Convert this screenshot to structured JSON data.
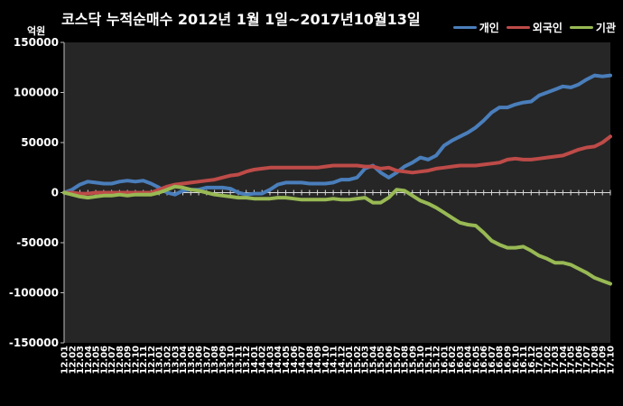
{
  "chart_data": {
    "type": "line",
    "title": "코스닥 누적순매수 2012년 1월 1일~2017년10월13일",
    "unit_label": "억원",
    "ylim": [
      -150000,
      150000
    ],
    "yticks": [
      150000,
      100000,
      50000,
      0,
      -50000,
      -100000,
      -150000
    ],
    "ytick_labels": [
      "150000",
      "100000",
      "50000",
      "0",
      "-50000",
      "-100000",
      "-150000"
    ],
    "legend_position": "top-right",
    "x": [
      "12.01",
      "12.02",
      "12.03",
      "12.04",
      "12.05",
      "12.06",
      "12.07",
      "12.08",
      "12.09",
      "12.10",
      "12.11",
      "12.12",
      "13.01",
      "13.02",
      "13.03",
      "13.04",
      "13.05",
      "13.06",
      "13.07",
      "13.08",
      "13.09",
      "13.10",
      "13.11",
      "13.12",
      "14.01",
      "14.02",
      "14.03",
      "14.04",
      "14.05",
      "14.06",
      "14.07",
      "14.08",
      "14.09",
      "14.10",
      "14.11",
      "14.12",
      "15.01",
      "15.02",
      "15.03",
      "15.04",
      "15.05",
      "15.06",
      "15.07",
      "15.08",
      "15.09",
      "15.10",
      "15.11",
      "15.12",
      "16.01",
      "16.02",
      "16.03",
      "16.04",
      "16.05",
      "16.06",
      "16.07",
      "16.08",
      "16.09",
      "16.10",
      "16.11",
      "16.12",
      "17.01",
      "17.02",
      "17.03",
      "17.04",
      "17.05",
      "17.06",
      "17.07",
      "17.08",
      "17.09",
      "17.10"
    ],
    "series": [
      {
        "name": "개인",
        "color": "#4a7ebb",
        "values": [
          0,
          3000,
          8000,
          11000,
          10000,
          9000,
          9000,
          11000,
          12000,
          11000,
          12000,
          9000,
          5000,
          0,
          -2000,
          2000,
          3000,
          3000,
          5000,
          5000,
          5000,
          4000,
          0,
          -2000,
          -1000,
          -1000,
          3000,
          8000,
          10000,
          10000,
          10000,
          9000,
          9000,
          9000,
          10000,
          13000,
          13000,
          15000,
          24000,
          27000,
          20000,
          15000,
          20000,
          26000,
          30000,
          35000,
          33000,
          37000,
          47000,
          52000,
          56000,
          60000,
          65000,
          72000,
          80000,
          85000,
          85000,
          88000,
          90000,
          91000,
          97000,
          100000,
          103000,
          106000,
          105000,
          108000,
          113000,
          117000,
          116000,
          117000
        ]
      },
      {
        "name": "외국인",
        "color": "#be4b48",
        "values": [
          0,
          0,
          -1000,
          -1000,
          0,
          0,
          0,
          0,
          0,
          0,
          0,
          0,
          3000,
          6000,
          8000,
          9000,
          10000,
          11000,
          12000,
          13000,
          15000,
          17000,
          18000,
          21000,
          23000,
          24000,
          25000,
          25000,
          25000,
          25000,
          25000,
          25000,
          25000,
          26000,
          27000,
          27000,
          27000,
          27000,
          26000,
          26000,
          24000,
          25000,
          22000,
          21000,
          20000,
          21000,
          22000,
          24000,
          25000,
          26000,
          27000,
          27000,
          27000,
          28000,
          29000,
          30000,
          33000,
          34000,
          33000,
          33000,
          34000,
          35000,
          36000,
          37000,
          40000,
          43000,
          45000,
          46000,
          50000,
          56000
        ]
      },
      {
        "name": "기관",
        "color": "#98b954",
        "values": [
          0,
          -2000,
          -4000,
          -5000,
          -4000,
          -3000,
          -3000,
          -2000,
          -3000,
          -2000,
          -2000,
          -2000,
          0,
          3000,
          6000,
          5000,
          3000,
          2000,
          0,
          -2000,
          -3000,
          -4000,
          -5000,
          -5000,
          -6000,
          -6000,
          -6000,
          -5000,
          -5000,
          -6000,
          -7000,
          -7000,
          -7000,
          -7000,
          -6000,
          -7000,
          -7000,
          -6000,
          -5000,
          -10000,
          -10000,
          -5000,
          3000,
          2000,
          -3000,
          -8000,
          -11000,
          -15000,
          -20000,
          -25000,
          -30000,
          -32000,
          -33000,
          -40000,
          -48000,
          -52000,
          -55000,
          -55000,
          -54000,
          -58000,
          -63000,
          -66000,
          -70000,
          -70000,
          -72000,
          -76000,
          -80000,
          -85000,
          -88000,
          -91000
        ]
      }
    ]
  }
}
